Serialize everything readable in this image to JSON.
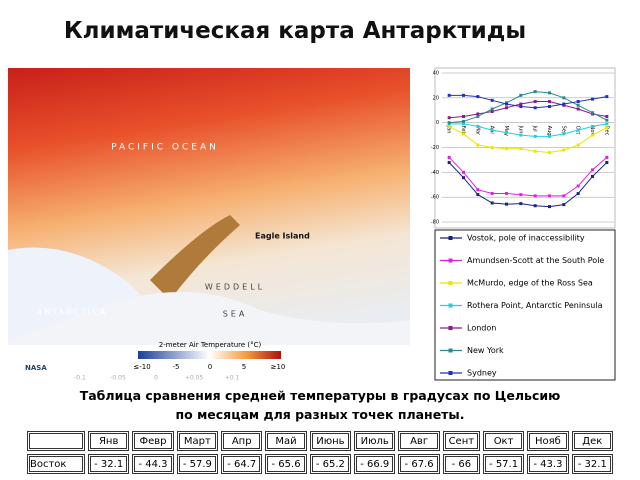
{
  "title": "Климатическая карта Антарктиды",
  "map": {
    "labels": [
      "PACIFIC OCEAN",
      "Eagle Island",
      "WEDDELL",
      "SEA",
      "ANTARCTICA"
    ],
    "colorbar_title": "2-meter Air Temperature (°C)",
    "colorbar_ticks": [
      "≤-10",
      "-5",
      "0",
      "5",
      "≥10"
    ],
    "anomaly_ticks": [
      "-0.1",
      "-0.05",
      "0",
      "+0.05",
      "+0.1"
    ],
    "credit": "NASA"
  },
  "chart_data": {
    "type": "line",
    "categories": [
      "Jan",
      "Feb",
      "Mar",
      "Apr",
      "May",
      "Jun",
      "Jul",
      "Aug",
      "Sep",
      "Oct",
      "Nov",
      "Dec"
    ],
    "ylim": [
      -80,
      40
    ],
    "yticks": [
      40,
      20,
      0,
      -20,
      -40,
      -60,
      -80
    ],
    "grid": true,
    "legend": "bottom",
    "series": [
      {
        "name": "Vostok, pole of inaccessibility",
        "color": "#1a237e",
        "values": [
          -32.1,
          -44.3,
          -57.9,
          -64.7,
          -65.6,
          -65.2,
          -66.9,
          -67.6,
          -66,
          -57.1,
          -43.3,
          -32.1
        ]
      },
      {
        "name": "Amundsen-Scott at the South Pole",
        "color": "#e020e0",
        "values": [
          -28,
          -40,
          -54,
          -57,
          -57,
          -58,
          -59,
          -59,
          -59,
          -51,
          -38,
          -28
        ]
      },
      {
        "name": "McMurdo, edge of the Ross Sea",
        "color": "#e8e800",
        "values": [
          -3,
          -9,
          -18,
          -20,
          -21,
          -21,
          -23,
          -24,
          -22,
          -18,
          -10,
          -4
        ]
      },
      {
        "name": "Rothera Point, Antarctic Peninsula",
        "color": "#20d0e0",
        "values": [
          -1,
          -1,
          -3,
          -6,
          -8,
          -10,
          -11,
          -11,
          -9,
          -6,
          -3,
          -1
        ]
      },
      {
        "name": "London",
        "color": "#8b1a8b",
        "values": [
          4,
          5,
          7,
          9,
          12,
          15,
          17,
          17,
          14,
          11,
          7,
          5
        ]
      },
      {
        "name": "New York",
        "color": "#2a8a8a",
        "values": [
          0,
          1,
          5,
          11,
          16,
          22,
          25,
          24,
          20,
          14,
          8,
          2
        ]
      },
      {
        "name": "Sydney",
        "color": "#2030c0",
        "values": [
          22,
          22,
          21,
          18,
          15,
          13,
          12,
          13,
          15,
          17,
          19,
          21
        ]
      }
    ]
  },
  "caption": [
    "Таблица сравнения средней температуры в градусах по Цельсию",
    "по месяцам для разных точек планеты."
  ],
  "table": {
    "header": [
      "",
      "Янв",
      "Февр",
      "Март",
      "Апр",
      "Май",
      "Июнь",
      "Июль",
      "Авг",
      "Сент",
      "Окт",
      "Нояб",
      "Дек"
    ],
    "rows": [
      [
        "Восток",
        "- 32.1",
        "- 44.3",
        "- 57.9",
        "- 64.7",
        "- 65.6",
        "- 65.2",
        "- 66.9",
        "- 67.6",
        "- 66",
        "- 57.1",
        "- 43.3",
        "- 32.1"
      ]
    ]
  }
}
